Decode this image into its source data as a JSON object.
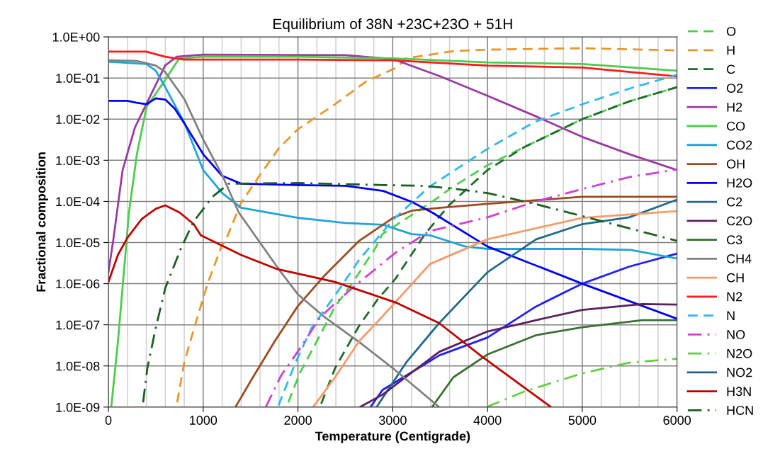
{
  "chart_data": {
    "type": "line",
    "title": "Equilibrium of 38N +23C+23O + 51H",
    "xlabel": "Temperature (Centigrade)",
    "ylabel": "Fractional composition",
    "log": "y",
    "grid": true,
    "legend": "right",
    "marker": "none",
    "xlim": [
      0,
      6000
    ],
    "ylim": [
      1e-09,
      1
    ],
    "xticks": [
      0,
      {
        "value": 200,
        "label": null
      },
      {
        "value": 400,
        "label": null
      },
      {
        "value": 600,
        "label": null
      },
      {
        "value": 800,
        "label": null
      },
      1000,
      {
        "value": 1200,
        "label": null
      },
      {
        "value": 1400,
        "label": null
      },
      {
        "value": 1600,
        "label": null
      },
      {
        "value": 1800,
        "label": null
      },
      2000,
      {
        "value": 2200,
        "label": null
      },
      {
        "value": 2400,
        "label": null
      },
      {
        "value": 2600,
        "label": null
      },
      {
        "value": 2800,
        "label": null
      },
      3000,
      {
        "value": 3200,
        "label": null
      },
      {
        "value": 3400,
        "label": null
      },
      {
        "value": 3600,
        "label": null
      },
      {
        "value": 3800,
        "label": null
      },
      4000,
      {
        "value": 4200,
        "label": null
      },
      {
        "value": 4400,
        "label": null
      },
      {
        "value": 4600,
        "label": null
      },
      {
        "value": 4800,
        "label": null
      },
      5000,
      {
        "value": 5200,
        "label": null
      },
      {
        "value": 5400,
        "label": null
      },
      {
        "value": 5600,
        "label": null
      },
      {
        "value": 5800,
        "label": null
      },
      6000
    ],
    "yticks": [
      {
        "value": 1e-09,
        "label": "1.0E-09"
      },
      {
        "value": 1e-08,
        "label": "1.0E-08"
      },
      {
        "value": 1e-07,
        "label": "1.0E-07"
      },
      {
        "value": 1e-06,
        "label": "1.0E-06"
      },
      {
        "value": 1e-05,
        "label": "1.0E-05"
      },
      {
        "value": 0.0001,
        "label": "1.0E-04"
      },
      {
        "value": 0.001,
        "label": "1.0E-03"
      },
      {
        "value": 0.01,
        "label": "1.0E-02"
      },
      {
        "value": 0.1,
        "label": "1.0E-01"
      },
      {
        "value": 1,
        "label": "1.0E+00"
      }
    ],
    "series": [
      {
        "name": "O",
        "color": "#4ccf4c",
        "line_style": "dashed",
        "x": [
          1898,
          2018,
          2220,
          2392,
          2570,
          2818,
          2890,
          3390,
          3640,
          4000,
          4390,
          5000,
          5495,
          6000
        ],
        "values": [
          1.3e-09,
          6.6e-09,
          4.9e-08,
          2.8e-07,
          1e-06,
          7.4e-06,
          1.6e-05,
          9e-05,
          0.00023,
          0.00076,
          0.0021,
          0.01,
          0.027,
          0.06
        ]
      },
      {
        "name": "H",
        "color": "#e8962a",
        "line_style": "dashed",
        "x": [
          725,
          800,
          912,
          1046,
          1196,
          1248,
          1398,
          1600,
          1794,
          1996,
          2392,
          2720,
          3042,
          3140,
          3640,
          4000,
          5000,
          6000
        ],
        "values": [
          1.3e-09,
          1.2e-08,
          9.5e-08,
          1e-06,
          8.3e-06,
          1.3e-05,
          9e-05,
          0.00044,
          0.0019,
          0.0056,
          0.023,
          0.083,
          0.18,
          0.3,
          0.45,
          0.49,
          0.53,
          0.47
        ]
      },
      {
        "name": "C",
        "color": "#1e6b2a",
        "line_style": "dashed",
        "x": [
          2245,
          2392,
          2646,
          2840,
          3027,
          3340,
          3590,
          4000,
          4390,
          5000,
          5495,
          6000
        ],
        "values": [
          1.2e-09,
          8.9e-09,
          9.5e-08,
          4.1e-07,
          1.3e-06,
          1.6e-05,
          7.9e-05,
          0.00058,
          0.0021,
          0.01,
          0.027,
          0.06
        ]
      },
      {
        "name": "O2",
        "color": "#2020ff",
        "line_style": "solid",
        "x": [
          2765,
          2892,
          3490,
          4000,
          4514,
          5000,
          5495,
          6000
        ],
        "values": [
          1e-09,
          2.6e-09,
          1.8e-08,
          4.9e-08,
          2.8e-07,
          1e-06,
          2.6e-06,
          5.4e-06
        ]
      },
      {
        "name": "H2",
        "color": "#9b3aa0",
        "line_style": "solid",
        "x": [
          0,
          50,
          150,
          280,
          400,
          598,
          720,
          1000,
          2500,
          3000,
          3500,
          4000,
          4500,
          5000,
          5500,
          6000
        ],
        "values": [
          1.9e-06,
          1.1e-05,
          0.00058,
          0.0063,
          0.023,
          0.2,
          0.33,
          0.37,
          0.36,
          0.29,
          0.11,
          0.037,
          0.012,
          0.0037,
          0.0014,
          0.00058
        ]
      },
      {
        "name": "CO",
        "color": "#4ccc4c",
        "line_style": "solid",
        "x": [
          30,
          100,
          217,
          300,
          403,
          598,
          747,
          1000,
          2000,
          3000,
          4000,
          5000,
          6000
        ],
        "values": [
          1e-09,
          3.8e-08,
          5.4e-05,
          0.0014,
          0.02,
          0.089,
          0.3,
          0.33,
          0.33,
          0.3,
          0.24,
          0.22,
          0.15
        ]
      },
      {
        "name": "CO2",
        "color": "#1ea4d8",
        "line_style": "solid",
        "x": [
          0,
          400,
          500,
          600,
          800,
          1000,
          1200,
          1400,
          2000,
          2500,
          2900,
          3200,
          3393,
          3766,
          4000,
          5000,
          5508,
          6000
        ],
        "values": [
          0.25,
          0.22,
          0.15,
          0.06,
          0.0083,
          0.00058,
          0.00016,
          7e-05,
          4e-05,
          3e-05,
          2.7e-05,
          1.6e-05,
          1.5e-05,
          8e-06,
          7e-06,
          7e-06,
          6.6e-06,
          4.1e-06
        ]
      },
      {
        "name": "OH",
        "color": "#9c4a1e",
        "line_style": "solid",
        "x": [
          1340,
          1525,
          1750,
          1996,
          2272,
          2646,
          3004,
          3206,
          3505,
          4000,
          5000,
          5495,
          6000
        ],
        "values": [
          1e-09,
          5.3e-09,
          3.8e-08,
          2.8e-07,
          1.5e-06,
          1.1e-05,
          4e-05,
          6e-05,
          7e-05,
          8.7e-05,
          0.00013,
          0.00013,
          0.00013
        ]
      },
      {
        "name": "H2O",
        "color": "#0000f0",
        "line_style": "solid",
        "x": [
          0,
          200,
          300,
          400,
          500,
          600,
          700,
          800,
          1000,
          1200,
          1400,
          2000,
          2500,
          2900,
          3200,
          3415,
          4000,
          5000,
          6000
        ],
        "values": [
          0.028,
          0.028,
          0.025,
          0.023,
          0.032,
          0.03,
          0.018,
          0.008,
          0.0014,
          0.00042,
          0.00027,
          0.00025,
          0.00024,
          0.00018,
          9.8e-05,
          5.4e-05,
          8e-06,
          1e-06,
          1.4e-07
        ]
      },
      {
        "name": "C2",
        "color": "#1f6a8a",
        "line_style": "solid",
        "x": [
          2830,
          3140,
          3490,
          4000,
          4514,
          5000,
          5495,
          6000
        ],
        "values": [
          1e-09,
          1.2e-08,
          1.1e-07,
          1.9e-06,
          1.2e-05,
          2.8e-05,
          4.1e-05,
          0.00011
        ]
      },
      {
        "name": "C2O",
        "color": "#5a2060",
        "line_style": "solid",
        "x": [
          2655,
          2892,
          3490,
          4000,
          4514,
          5000,
          5635,
          6000
        ],
        "values": [
          1e-09,
          2e-09,
          2.2e-08,
          6.9e-08,
          1.3e-07,
          2.3e-07,
          3.2e-07,
          3.1e-07
        ]
      },
      {
        "name": "C3",
        "color": "#3a7030",
        "line_style": "solid",
        "x": [
          3415,
          3640,
          4000,
          4514,
          5000,
          5635,
          6000
        ],
        "values": [
          1e-09,
          5.3e-09,
          1.9e-08,
          5.6e-08,
          8.7e-08,
          1.3e-07,
          1.3e-07
        ]
      },
      {
        "name": "CH4",
        "color": "#808080",
        "line_style": "solid",
        "x": [
          0,
          300,
          500,
          600,
          800,
          1000,
          1200,
          1375,
          1794,
          1996,
          2272,
          2646,
          3027,
          3490
        ],
        "values": [
          0.27,
          0.26,
          0.2,
          0.14,
          0.031,
          0.0032,
          0.00044,
          5.4e-05,
          2.3e-06,
          5.6e-07,
          1.6e-07,
          3.8e-08,
          7.9e-09,
          1e-09
        ]
      },
      {
        "name": "CH",
        "color": "#f59a6a",
        "line_style": "solid",
        "x": [
          2160,
          2392,
          2646,
          2892,
          3393,
          4000,
          5000,
          5495,
          6000
        ],
        "values": [
          1e-09,
          5.3e-09,
          4e-08,
          1.6e-07,
          3e-06,
          1.2e-05,
          4e-05,
          4.8e-05,
          5.8e-05
        ]
      },
      {
        "name": "N2",
        "color": "#ff1a1a",
        "line_style": "solid",
        "x": [
          0,
          400,
          600,
          800,
          2000,
          3000,
          4000,
          5000,
          6000
        ],
        "values": [
          0.44,
          0.44,
          0.33,
          0.28,
          0.28,
          0.27,
          0.2,
          0.18,
          0.11
        ]
      },
      {
        "name": "N",
        "color": "#30b8f0",
        "line_style": "dashed",
        "x": [
          1795,
          1973,
          2145,
          2392,
          2646,
          3004,
          3390,
          4000,
          4500,
          5000,
          5495,
          6000
        ],
        "values": [
          1.1e-09,
          1.2e-08,
          8.5e-08,
          5.2e-07,
          3.8e-06,
          3.6e-05,
          0.00023,
          0.0019,
          0.0086,
          0.023,
          0.055,
          0.12
        ]
      },
      {
        "name": "NO",
        "color": "#d040d0",
        "line_style": "dashdot",
        "x": [
          1660,
          1823,
          2018,
          2242,
          2570,
          3027,
          3390,
          4000,
          4500,
          5000,
          5495,
          6000
        ],
        "values": [
          1e-09,
          5.9e-09,
          2.6e-08,
          1.6e-07,
          7.8e-07,
          5.6e-06,
          1.9e-05,
          4.1e-05,
          9.8e-05,
          0.0002,
          0.00039,
          0.0006
        ]
      },
      {
        "name": "N2O",
        "color": "#66cc44",
        "line_style": "dashdot",
        "x": [
          3990,
          4390,
          5000,
          5495,
          6000
        ],
        "values": [
          1e-09,
          2.4e-09,
          6.6e-09,
          1.2e-08,
          1.5e-08
        ]
      },
      {
        "name": "NO2",
        "color": "#2a6080",
        "line_style": "solid"
      },
      {
        "name": "H3N",
        "color": "#c00000",
        "line_style": "solid",
        "x": [
          0,
          100,
          200,
          350,
          500,
          600,
          750,
          900,
          975,
          1400,
          1770,
          2390,
          3030,
          3490,
          3940,
          4670
        ],
        "values": [
          1.1e-06,
          5e-06,
          1.3e-05,
          3.7e-05,
          6.6e-05,
          8e-05,
          5.4e-05,
          2.8e-05,
          1.5e-05,
          5e-06,
          2.3e-06,
          1.1e-06,
          3.5e-07,
          1.1e-07,
          1.7e-08,
          1e-09
        ]
      },
      {
        "name": "HCN",
        "color": "#1a5e20",
        "line_style": "dashdot",
        "x": [
          366,
          411,
          500,
          600,
          762,
          897,
          1100,
          1270,
          2000,
          2900,
          3300,
          3600,
          4000,
          4500,
          5000,
          6000
        ],
        "values": [
          1.3e-09,
          8.9e-09,
          8.5e-08,
          7.8e-07,
          6.9e-06,
          3.2e-05,
          0.00013,
          0.00027,
          0.00028,
          0.00025,
          0.00024,
          0.00021,
          0.00016,
          8.7e-05,
          4.4e-05,
          1.1e-05
        ]
      }
    ]
  }
}
